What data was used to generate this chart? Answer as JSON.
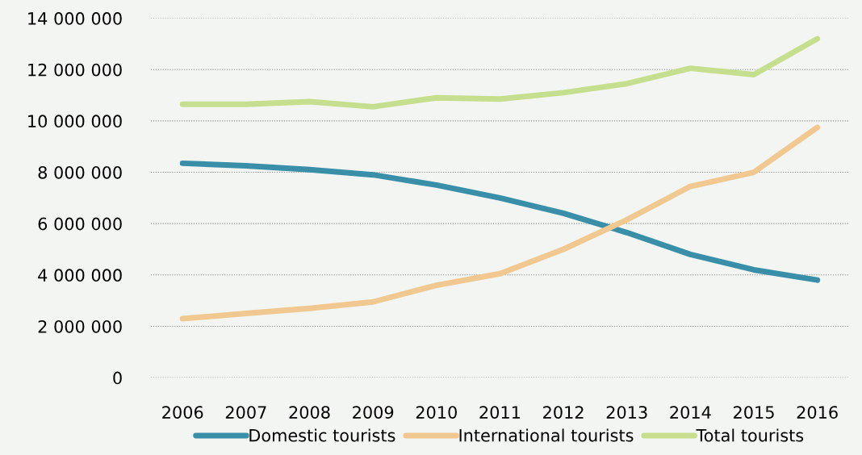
{
  "chart_data": {
    "type": "line",
    "categories": [
      "2006",
      "2007",
      "2008",
      "2009",
      "2010",
      "2011",
      "2012",
      "2013",
      "2014",
      "2015",
      "2016"
    ],
    "series": [
      {
        "name": "Domestic tourists",
        "color": "#3a8fa8",
        "values": [
          8350000,
          8250000,
          8100000,
          7900000,
          7500000,
          7000000,
          6400000,
          5650000,
          4800000,
          4200000,
          3800000
        ]
      },
      {
        "name": "International tourists",
        "color": "#f0c890",
        "values": [
          2300000,
          2500000,
          2700000,
          2950000,
          3600000,
          4050000,
          5000000,
          6150000,
          7450000,
          8000000,
          9750000
        ]
      },
      {
        "name": "Total tourists",
        "color": "#c5df8e",
        "values": [
          10650000,
          10650000,
          10750000,
          10550000,
          10900000,
          10850000,
          11100000,
          11450000,
          12050000,
          11800000,
          13200000
        ]
      }
    ],
    "ylim": [
      0,
      14000000
    ],
    "yticks": [
      {
        "value": 0,
        "label": "0"
      },
      {
        "value": 2000000,
        "label": "2 000 000"
      },
      {
        "value": 4000000,
        "label": "4 000 000"
      },
      {
        "value": 6000000,
        "label": "6 000 000"
      },
      {
        "value": 8000000,
        "label": "8 000 000"
      },
      {
        "value": 10000000,
        "label": "10 000 000"
      },
      {
        "value": 12000000,
        "label": "12 000 000"
      },
      {
        "value": 14000000,
        "label": "14 000 000"
      }
    ],
    "grid": "y",
    "legend": "bottom",
    "marker": "none",
    "line_style": "solid"
  }
}
